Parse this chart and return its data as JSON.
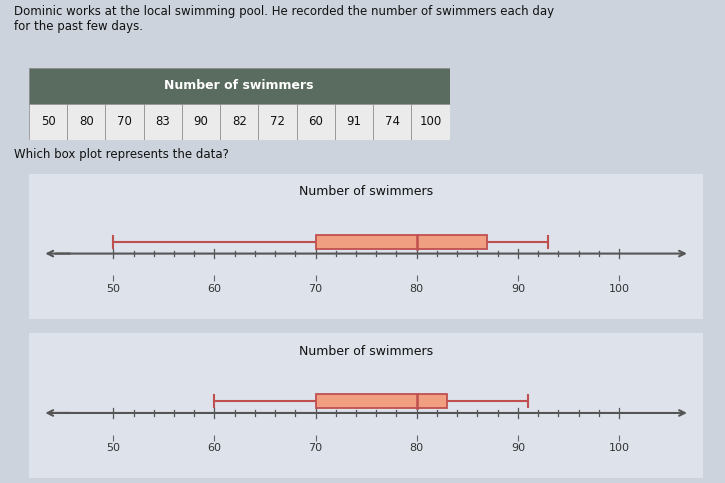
{
  "title_text": "Dominic works at the local swimming pool. He recorded the number of swimmers each day\nfor the past few days.",
  "table_title": "Number of swimmers",
  "table_data": [
    50,
    80,
    70,
    83,
    90,
    82,
    72,
    60,
    91,
    74,
    100
  ],
  "question_text": "Which box plot represents the data?",
  "bp1": {
    "title": "Number of swimmers",
    "min": 50,
    "q1": 70,
    "median": 80,
    "q3": 87,
    "max": 93,
    "xticks": [
      50,
      60,
      70,
      80,
      90,
      100
    ]
  },
  "bp2": {
    "title": "Number of swimmers",
    "min": 60,
    "q1": 70,
    "median": 80,
    "q3": 83,
    "max": 91,
    "xticks": [
      50,
      60,
      70,
      80,
      90,
      100
    ]
  },
  "box_facecolor": "#f0a080",
  "box_edgecolor": "#c05050",
  "whisker_color": "#c05050",
  "median_color": "#c05050",
  "bg_color": "#cdd3dc",
  "panel_bg": "#dde2eb",
  "tick_label_fontsize": 8,
  "bp_title_fontsize": 9,
  "text_fontsize": 8.5,
  "xlim": [
    43,
    107
  ]
}
